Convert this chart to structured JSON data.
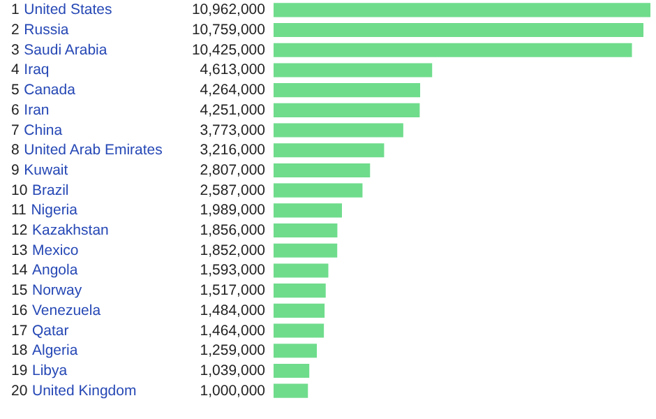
{
  "chart_data": {
    "type": "bar",
    "orientation": "horizontal",
    "color": "#6fdc8c",
    "categories": [
      "1 United States",
      "2 Russia",
      "3 Saudi Arabia",
      "4 Iraq",
      "5 Canada",
      "6 Iran",
      "7 China",
      "8 United Arab Emirates",
      "9 Kuwait",
      "10 Brazil",
      "11 Nigeria",
      "12 Kazakhstan",
      "13 Mexico",
      "14 Angola",
      "15 Norway",
      "16 Venezuela",
      "17 Qatar",
      "18 Algeria",
      "19 Libya",
      "20 United Kingdom"
    ],
    "values": [
      10962000,
      10759000,
      10425000,
      4613000,
      4264000,
      4251000,
      3773000,
      3216000,
      2807000,
      2587000,
      1989000,
      1856000,
      1852000,
      1593000,
      1517000,
      1484000,
      1464000,
      1259000,
      1039000,
      1000000
    ],
    "value_labels": [
      "10,962,000",
      "10,759,000",
      "10,425,000",
      "4,613,000",
      "4,264,000",
      "4,251,000",
      "3,773,000",
      "3,216,000",
      "2,807,000",
      "2,587,000",
      "1,989,000",
      "1,856,000",
      "1,852,000",
      "1,593,000",
      "1,517,000",
      "1,484,000",
      "1,464,000",
      "1,259,000",
      "1,039,000",
      "1,000,000"
    ],
    "grid": false
  }
}
